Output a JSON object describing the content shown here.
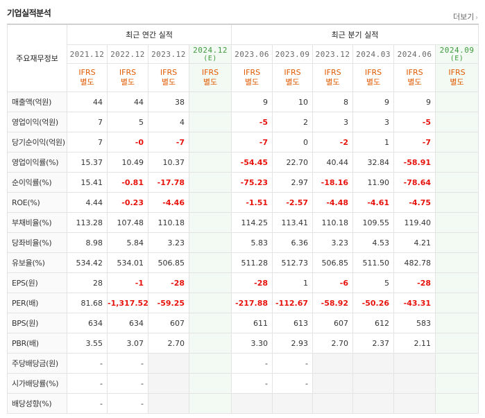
{
  "title": "기업실적분석",
  "more_label": "더보기",
  "more_arrow": "›",
  "corner_label": "주요재무정보",
  "group_annual": "최근 연간 실적",
  "group_quarter": "최근 분기 실적",
  "periods": [
    "2021.12",
    "2022.12",
    "2023.12",
    "2024.12",
    "2023.06",
    "2023.09",
    "2023.12",
    "2024.03",
    "2024.06",
    "2024.09"
  ],
  "estimate_mark": "(E)",
  "ifrs_line1": "IFRS",
  "ifrs_line2": "별도",
  "rows": [
    {
      "label": "매출액(억원)",
      "values": [
        "44",
        "44",
        "38",
        "",
        "9",
        "10",
        "8",
        "9",
        "9",
        ""
      ]
    },
    {
      "label": "영업이익(억원)",
      "values": [
        "7",
        "5",
        "4",
        "",
        "-5",
        "2",
        "3",
        "3",
        "-5",
        ""
      ]
    },
    {
      "label": "당기순이익(억원)",
      "values": [
        "7",
        "-0",
        "-7",
        "",
        "-7",
        "0",
        "-2",
        "1",
        "-7",
        ""
      ]
    },
    {
      "label": "영업이익률(%)",
      "values": [
        "15.37",
        "10.49",
        "10.37",
        "",
        "-54.45",
        "22.70",
        "40.44",
        "32.84",
        "-58.91",
        ""
      ]
    },
    {
      "label": "순이익률(%)",
      "values": [
        "15.41",
        "-0.81",
        "-17.78",
        "",
        "-75.23",
        "2.97",
        "-18.16",
        "11.90",
        "-78.64",
        ""
      ]
    },
    {
      "label": "ROE(%)",
      "values": [
        "4.44",
        "-0.23",
        "-4.46",
        "",
        "-1.51",
        "-2.57",
        "-4.48",
        "-4.61",
        "-4.75",
        ""
      ]
    },
    {
      "label": "부채비율(%)",
      "values": [
        "113.28",
        "107.48",
        "110.18",
        "",
        "114.25",
        "113.41",
        "110.18",
        "109.55",
        "119.40",
        ""
      ]
    },
    {
      "label": "당좌비율(%)",
      "values": [
        "8.98",
        "5.84",
        "3.23",
        "",
        "5.83",
        "6.36",
        "3.23",
        "4.53",
        "4.21",
        ""
      ]
    },
    {
      "label": "유보율(%)",
      "values": [
        "534.42",
        "534.01",
        "506.85",
        "",
        "511.28",
        "512.73",
        "506.85",
        "511.50",
        "482.78",
        ""
      ]
    },
    {
      "label": "EPS(원)",
      "values": [
        "28",
        "-1",
        "-28",
        "",
        "-28",
        "1",
        "-6",
        "5",
        "-28",
        ""
      ]
    },
    {
      "label": "PER(배)",
      "values": [
        "81.68",
        "-1,317.52",
        "-59.25",
        "",
        "-217.88",
        "-112.67",
        "-58.92",
        "-50.26",
        "-43.31",
        ""
      ]
    },
    {
      "label": "BPS(원)",
      "values": [
        "634",
        "634",
        "607",
        "",
        "611",
        "613",
        "607",
        "612",
        "583",
        ""
      ]
    },
    {
      "label": "PBR(배)",
      "values": [
        "3.55",
        "3.07",
        "2.70",
        "",
        "3.30",
        "2.93",
        "2.70",
        "2.37",
        "2.11",
        ""
      ]
    },
    {
      "label": "주당배당금(원)",
      "values": [
        "-",
        "-",
        "",
        "",
        "-",
        "-",
        "",
        "",
        "",
        ""
      ]
    },
    {
      "label": "시가배당률(%)",
      "values": [
        "-",
        "-",
        "",
        "",
        "-",
        "-",
        "",
        "",
        "",
        ""
      ]
    },
    {
      "label": "배당성향(%)",
      "values": [
        "-",
        "-",
        "",
        "",
        "",
        "",
        "",
        "",
        "",
        ""
      ]
    }
  ],
  "colors": {
    "negative": "#e8120c",
    "ifrs": "#e05a00",
    "estimate": "#3d9a3d",
    "estimate_bg": "#f3faf3"
  }
}
